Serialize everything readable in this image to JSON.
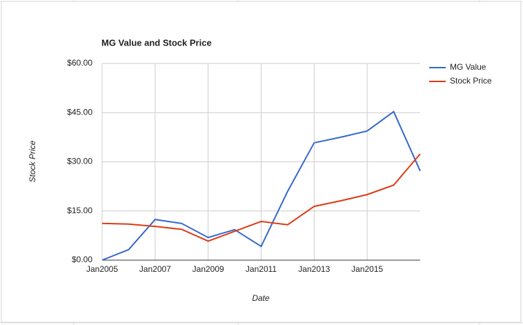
{
  "chart_data": {
    "type": "line",
    "title": "MG Value and Stock Price",
    "x_label": "Date",
    "y_label": "Stock Price",
    "x": [
      "2005-01",
      "2006-01",
      "2007-01",
      "2008-01",
      "2009-01",
      "2010-01",
      "2011-01",
      "2012-01",
      "2013-01",
      "2014-01",
      "2015-01",
      "2016-01",
      "2017-01"
    ],
    "series": [
      {
        "name": "MG Value",
        "color": "#3366cc",
        "values": [
          0,
          3.2,
          12.4,
          11.2,
          6.9,
          9.3,
          4.2,
          21,
          35.8,
          37.5,
          39.4,
          45.3,
          27.2
        ]
      },
      {
        "name": "Stock Price",
        "color": "#dc3912",
        "values": [
          11.2,
          11,
          10.3,
          9.4,
          5.8,
          8.8,
          11.8,
          10.8,
          16.4,
          18.1,
          20,
          22.9,
          32.4
        ]
      }
    ],
    "xlim": [
      "2005-01",
      "2017-01"
    ],
    "xticks": [
      {
        "value": "2005-01",
        "label": "Jan2005"
      },
      {
        "value": "2007-01",
        "label": "Jan2007"
      },
      {
        "value": "2009-01",
        "label": "Jan2009"
      },
      {
        "value": "2011-01",
        "label": "Jan2011"
      },
      {
        "value": "2013-01",
        "label": "Jan2013"
      },
      {
        "value": "2015-01",
        "label": "Jan2015"
      }
    ],
    "ylim": [
      0,
      60
    ],
    "yticks": [
      {
        "value": 0,
        "label": "$0.00"
      },
      {
        "value": 15,
        "label": "$15.00"
      },
      {
        "value": 30,
        "label": "$30.00"
      },
      {
        "value": 45,
        "label": "$45.00"
      },
      {
        "value": 60,
        "label": "$60.00"
      }
    ],
    "grid": true,
    "legend": "right"
  }
}
